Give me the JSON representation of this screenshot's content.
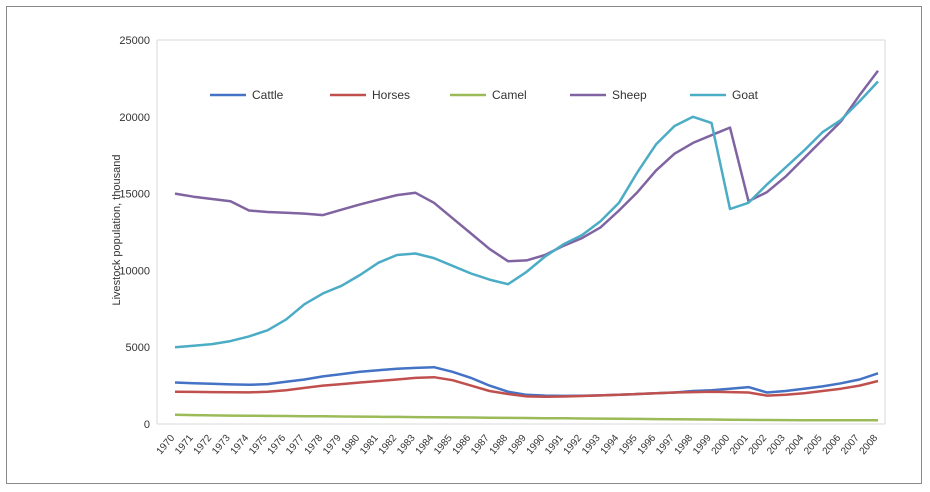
{
  "chart_data": {
    "type": "line",
    "title": "",
    "xlabel": "",
    "ylabel": "Livestock population, thousand",
    "ylim": [
      0,
      25000
    ],
    "yticks": [
      0,
      5000,
      10000,
      15000,
      20000,
      25000
    ],
    "ytick_labels": [
      "0",
      "5000",
      "10000",
      "15000",
      "20000",
      "25000"
    ],
    "grid": false,
    "legend_position": "top",
    "x": [
      1970,
      1971,
      1972,
      1973,
      1974,
      1975,
      1976,
      1977,
      1978,
      1979,
      1980,
      1981,
      1982,
      1983,
      1984,
      1985,
      1986,
      1987,
      1988,
      1989,
      1990,
      1991,
      1992,
      1993,
      1994,
      1995,
      1996,
      1997,
      1998,
      1999,
      2000,
      2001,
      2002,
      2003,
      2004,
      2005,
      2006,
      2007,
      2008
    ],
    "series": [
      {
        "name": "Cattle",
        "color": "#4472c4",
        "values": [
          2700,
          2650,
          2620,
          2580,
          2550,
          2600,
          2750,
          2900,
          3100,
          3250,
          3400,
          3500,
          3600,
          3650,
          3700,
          3400,
          3000,
          2500,
          2100,
          1900,
          1850,
          1830,
          1840,
          1860,
          1900,
          1950,
          2000,
          2050,
          2150,
          2200,
          2300,
          2400,
          2050,
          2150,
          2300,
          2450,
          2650,
          2900,
          3300
        ]
      },
      {
        "name": "Horses",
        "color": "#c0504d",
        "values": [
          2100,
          2090,
          2080,
          2070,
          2060,
          2100,
          2200,
          2350,
          2500,
          2600,
          2700,
          2800,
          2900,
          3000,
          3050,
          2850,
          2500,
          2150,
          1950,
          1800,
          1780,
          1790,
          1820,
          1860,
          1900,
          1950,
          2000,
          2050,
          2080,
          2100,
          2080,
          2050,
          1850,
          1900,
          2000,
          2150,
          2300,
          2500,
          2800
        ]
      },
      {
        "name": "Camel",
        "color": "#9bbb59",
        "values": [
          600,
          580,
          560,
          550,
          540,
          530,
          520,
          510,
          500,
          490,
          480,
          470,
          460,
          450,
          440,
          430,
          420,
          410,
          400,
          390,
          380,
          370,
          360,
          350,
          340,
          330,
          320,
          310,
          300,
          290,
          280,
          270,
          260,
          255,
          250,
          250,
          250,
          250,
          250
        ]
      },
      {
        "name": "Sheep",
        "color": "#8064a2",
        "values": [
          15000,
          14800,
          14650,
          14500,
          13900,
          13800,
          13750,
          13700,
          13600,
          13950,
          14300,
          14600,
          14900,
          15050,
          14400,
          13400,
          12400,
          11400,
          10600,
          10650,
          11000,
          11600,
          12100,
          12800,
          13900,
          15100,
          16500,
          17600,
          18300,
          18800,
          19300,
          14500,
          15100,
          16100,
          17300,
          18500,
          19700,
          21400,
          23000
        ]
      },
      {
        "name": "Goat",
        "color": "#4bacc6",
        "values": [
          5000,
          5100,
          5200,
          5400,
          5700,
          6100,
          6800,
          7800,
          8500,
          9000,
          9700,
          10500,
          11000,
          11100,
          10800,
          10300,
          9800,
          9400,
          9100,
          9900,
          10900,
          11700,
          12300,
          13200,
          14400,
          16400,
          18200,
          19400,
          20000,
          19600,
          14000,
          14400,
          15600,
          16700,
          17800,
          19000,
          19800,
          21000,
          22300
        ]
      }
    ]
  }
}
